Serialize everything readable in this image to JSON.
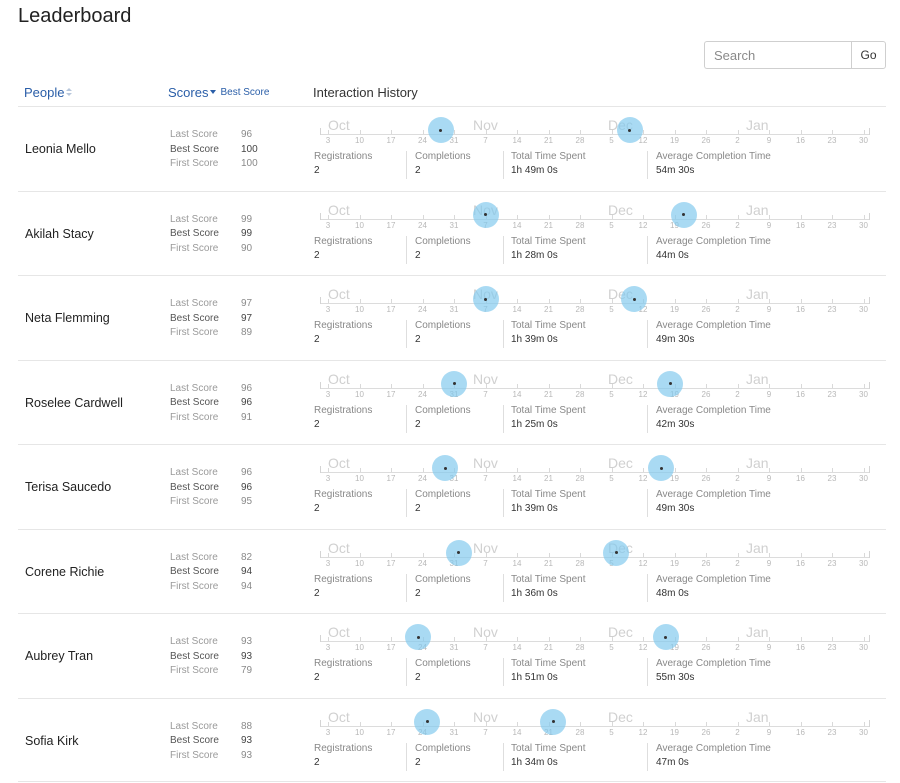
{
  "page": {
    "title": "Leaderboard"
  },
  "search": {
    "placeholder": "Search",
    "value": "",
    "go_label": "Go"
  },
  "columns": {
    "people": "People",
    "scores": "Scores",
    "scores_sort": "Best Score",
    "history": "Interaction History"
  },
  "timeline": {
    "months": [
      "Oct",
      "Nov",
      "Dec",
      "Jan"
    ],
    "days": [
      "3",
      "10",
      "17",
      "24",
      "31",
      "7",
      "14",
      "21",
      "28",
      "5",
      "12",
      "19",
      "26",
      "2",
      "9",
      "16",
      "23",
      "30"
    ]
  },
  "score_labels": {
    "last": "Last Score",
    "best": "Best Score",
    "first": "First Score"
  },
  "stat_labels": {
    "registrations": "Registrations",
    "completions": "Completions",
    "total_time": "Total Time Spent",
    "avg_time": "Average Completion Time"
  },
  "people": [
    {
      "name": "Leonia Mello",
      "last": "96",
      "best": "100",
      "first": "100",
      "registrations": "2",
      "completions": "2",
      "total_time": "1h 49m 0s",
      "avg_time": "54m 30s",
      "events": [
        "Oct 28",
        "Dec 9"
      ]
    },
    {
      "name": "Akilah Stacy",
      "last": "99",
      "best": "99",
      "first": "90",
      "registrations": "2",
      "completions": "2",
      "total_time": "1h 28m 0s",
      "avg_time": "44m 0s",
      "events": [
        "Nov 7",
        "Dec 21"
      ]
    },
    {
      "name": "Neta Flemming",
      "last": "97",
      "best": "97",
      "first": "89",
      "registrations": "2",
      "completions": "2",
      "total_time": "1h 39m 0s",
      "avg_time": "49m 30s",
      "events": [
        "Nov 7",
        "Dec 10"
      ]
    },
    {
      "name": "Roselee Cardwell",
      "last": "96",
      "best": "96",
      "first": "91",
      "registrations": "2",
      "completions": "2",
      "total_time": "1h 25m 0s",
      "avg_time": "42m 30s",
      "events": [
        "Oct 31",
        "Dec 18"
      ]
    },
    {
      "name": "Terisa Saucedo",
      "last": "96",
      "best": "96",
      "first": "95",
      "registrations": "2",
      "completions": "2",
      "total_time": "1h 39m 0s",
      "avg_time": "49m 30s",
      "events": [
        "Oct 29",
        "Dec 16"
      ]
    },
    {
      "name": "Corene Richie",
      "last": "82",
      "best": "94",
      "first": "94",
      "registrations": "2",
      "completions": "2",
      "total_time": "1h 36m 0s",
      "avg_time": "48m 0s",
      "events": [
        "Nov 1",
        "Dec 6"
      ]
    },
    {
      "name": "Aubrey Tran",
      "last": "93",
      "best": "93",
      "first": "79",
      "registrations": "2",
      "completions": "2",
      "total_time": "1h 51m 0s",
      "avg_time": "55m 30s",
      "events": [
        "Oct 23",
        "Dec 17"
      ]
    },
    {
      "name": "Sofia Kirk",
      "last": "88",
      "best": "93",
      "first": "93",
      "registrations": "2",
      "completions": "2",
      "total_time": "1h 34m 0s",
      "avg_time": "47m 0s",
      "events": [
        "Oct 25",
        "Nov 22"
      ]
    }
  ]
}
